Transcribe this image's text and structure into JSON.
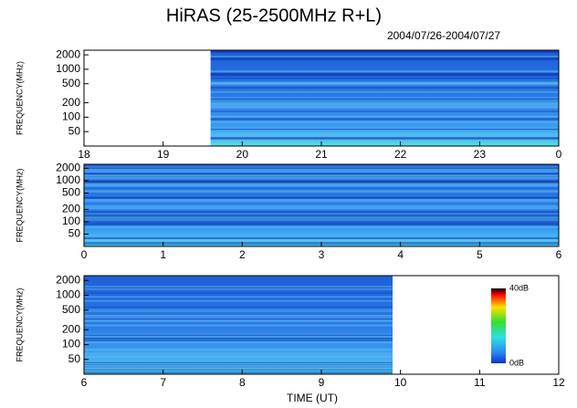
{
  "chart_data": [
    {
      "type": "spectrogram",
      "title": "HiRAS (25-2500MHz R+L)",
      "subtitle": "2004/07/26-2004/07/27",
      "ylabel": "FREQUENCY(MHz)",
      "log_y": true,
      "xlim": [
        18,
        24
      ],
      "xticks": [
        18,
        19,
        20,
        21,
        22,
        23,
        {
          "value": 24,
          "label": "0"
        }
      ],
      "ylim": [
        25,
        2500
      ],
      "yticks": [
        50,
        100,
        200,
        500,
        1000,
        2000
      ],
      "coverage": [
        19.6,
        24
      ]
    },
    {
      "type": "spectrogram",
      "ylabel": "FREQUENCY(MHz)",
      "log_y": true,
      "xlim": [
        0,
        6
      ],
      "xticks": [
        0,
        1,
        2,
        3,
        4,
        5,
        6
      ],
      "ylim": [
        25,
        2500
      ],
      "yticks": [
        50,
        100,
        200,
        500,
        1000,
        2000
      ],
      "coverage": [
        0,
        6
      ]
    },
    {
      "type": "spectrogram",
      "ylabel": "FREQUENCY(MHz)",
      "xlabel": "TIME (UT)",
      "log_y": true,
      "xlim": [
        6,
        12
      ],
      "xticks": [
        6,
        7,
        8,
        9,
        10,
        11,
        12
      ],
      "ylim": [
        25,
        2500
      ],
      "yticks": [
        50,
        100,
        200,
        500,
        1000,
        2000
      ],
      "coverage": [
        6,
        9.9
      ],
      "colorbar": {
        "ticks": [
          {
            "value": 40,
            "label": "40dB"
          },
          {
            "value": 0,
            "label": "0dB"
          }
        ],
        "range": [
          0,
          40
        ]
      }
    }
  ]
}
